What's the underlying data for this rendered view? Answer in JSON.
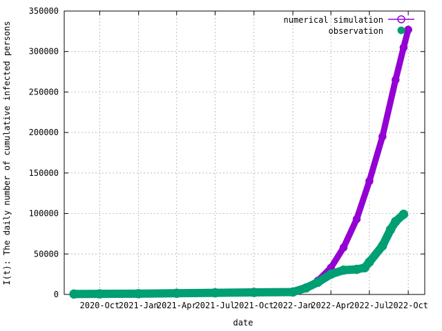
{
  "chart_data": {
    "type": "line",
    "title": "",
    "xlabel": "date",
    "ylabel": "I(t): The daily number of cumulative infected persons",
    "xlim": [
      "2020-07-09",
      "2022-11-09"
    ],
    "ylim": [
      0,
      350000
    ],
    "grid": true,
    "legend_position": "top-right",
    "x_ticks": [
      {
        "date": "2020-10-01",
        "label": "2020-Oct"
      },
      {
        "date": "2021-01-01",
        "label": "2021-Jan"
      },
      {
        "date": "2021-04-01",
        "label": "2021-Apr"
      },
      {
        "date": "2021-07-01",
        "label": "2021-Jul"
      },
      {
        "date": "2021-10-01",
        "label": "2021-Oct"
      },
      {
        "date": "2022-01-01",
        "label": "2022-Jan"
      },
      {
        "date": "2022-04-01",
        "label": "2022-Apr"
      },
      {
        "date": "2022-07-01",
        "label": "2022-Jul"
      },
      {
        "date": "2022-10-01",
        "label": "2022-Oct"
      }
    ],
    "y_ticks": [
      0,
      50000,
      100000,
      150000,
      200000,
      250000,
      300000,
      350000
    ],
    "series": [
      {
        "name": "numerical simulation",
        "color": "#9400d3",
        "marker": "open-circle",
        "x": [
          "2020-08-01",
          "2020-10-01",
          "2021-01-01",
          "2021-04-01",
          "2021-07-01",
          "2021-10-01",
          "2022-01-01",
          "2022-02-01",
          "2022-03-01",
          "2022-04-01",
          "2022-05-01",
          "2022-06-01",
          "2022-07-01",
          "2022-08-01",
          "2022-09-01",
          "2022-09-20",
          "2022-10-01"
        ],
        "y": [
          500,
          700,
          1000,
          1500,
          2000,
          2500,
          3000,
          8000,
          17000,
          33000,
          58000,
          93000,
          140000,
          195000,
          265000,
          305000,
          327000
        ]
      },
      {
        "name": "observation",
        "color": "#009e73",
        "marker": "filled-circle",
        "x": [
          "2020-08-01",
          "2020-10-01",
          "2021-01-01",
          "2021-04-01",
          "2021-07-01",
          "2021-10-01",
          "2022-01-01",
          "2022-02-01",
          "2022-03-01",
          "2022-04-01",
          "2022-05-01",
          "2022-06-01",
          "2022-06-20",
          "2022-07-01",
          "2022-08-01",
          "2022-08-20",
          "2022-09-01",
          "2022-09-20"
        ],
        "y": [
          500,
          700,
          1000,
          1500,
          2000,
          2500,
          3000,
          8000,
          15000,
          25000,
          30000,
          31000,
          33000,
          40000,
          60000,
          80000,
          90000,
          99000
        ]
      }
    ]
  }
}
